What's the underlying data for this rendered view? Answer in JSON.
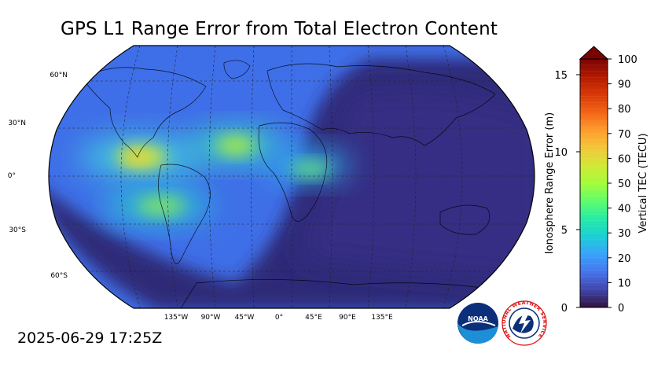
{
  "title": "GPS L1 Range Error from Total Electron Content",
  "timestamp": "2025-06-29 17:25Z",
  "map": {
    "projection": "robinson",
    "lat_labels": [
      "60°N",
      "30°N",
      "0°",
      "30°S",
      "60°S"
    ],
    "lon_labels": [
      "135°W",
      "90°W",
      "45°W",
      "0°",
      "45°E",
      "90°E",
      "135°E"
    ],
    "gridlines": true
  },
  "colorbar": {
    "left_label": "Ionosphere Range Error (m)",
    "left_ticks": [
      "0",
      "5",
      "10",
      "15"
    ],
    "right_label": "Vertical TEC (TECU)",
    "right_ticks": [
      "0",
      "10",
      "20",
      "30",
      "40",
      "50",
      "60",
      "70",
      "80",
      "90",
      "100"
    ],
    "extend": "max",
    "colormap_stops": [
      "#30123b",
      "#4145ab",
      "#4675ed",
      "#39a2fc",
      "#1bcfd4",
      "#24eca6",
      "#61fc6c",
      "#a4fc3b",
      "#d1e834",
      "#f3c63a",
      "#fe9b2d",
      "#f36315",
      "#d93806",
      "#b11901",
      "#7a0402"
    ]
  },
  "logos": {
    "noaa": "NOAA",
    "nws": "NATIONAL WEATHER SERVICE"
  }
}
